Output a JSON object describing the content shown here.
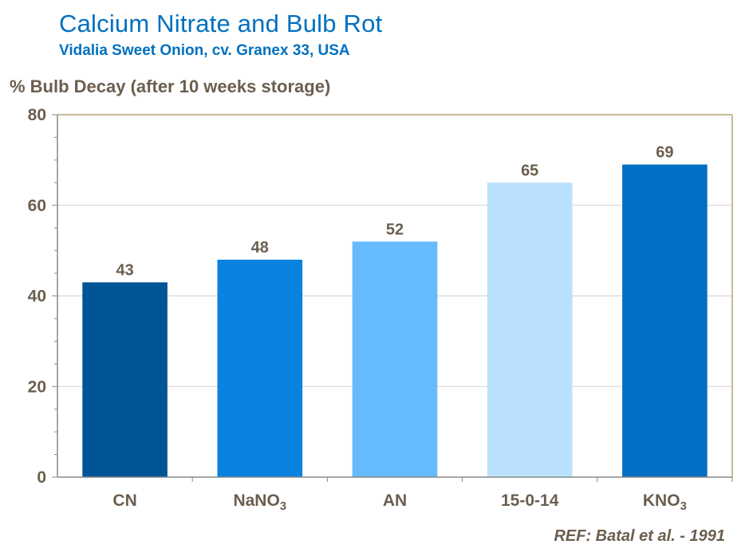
{
  "header": {
    "title": "Calcium Nitrate and Bulb Rot",
    "subtitle": "Vidalia  Sweet Onion,  cv. Granex 33, USA"
  },
  "footer": {
    "reference": "REF: Batal et al. - 1991"
  },
  "colors": {
    "title": "#0070c0",
    "text": "#6b5e4e",
    "plot_border": "#c8b99a",
    "grid": "#d6d0c4",
    "bar_colors": [
      "#005596",
      "#0a82e0",
      "#66bbff",
      "#b9e0fc",
      "#006fc4"
    ]
  },
  "chart_data": {
    "type": "bar",
    "title": "Calcium Nitrate and Bulb Rot",
    "subtitle": "Vidalia  Sweet Onion,  cv. Granex 33, USA",
    "ylabel": "%  Bulb Decay (after 10 weeks storage)",
    "xlabel": "",
    "categories": [
      {
        "base": "CN",
        "sub": ""
      },
      {
        "base": "NaNO",
        "sub": "3"
      },
      {
        "base": "AN",
        "sub": ""
      },
      {
        "base": "15-0-14",
        "sub": ""
      },
      {
        "base": "KNO",
        "sub": "3"
      }
    ],
    "values": [
      43,
      48,
      52,
      65,
      69
    ],
    "data_labels": [
      "43",
      "48",
      "52",
      "65",
      "69"
    ],
    "ylim": [
      0,
      80
    ],
    "yticks": [
      0,
      20,
      40,
      60,
      80
    ],
    "grid": true,
    "legend": "none"
  }
}
